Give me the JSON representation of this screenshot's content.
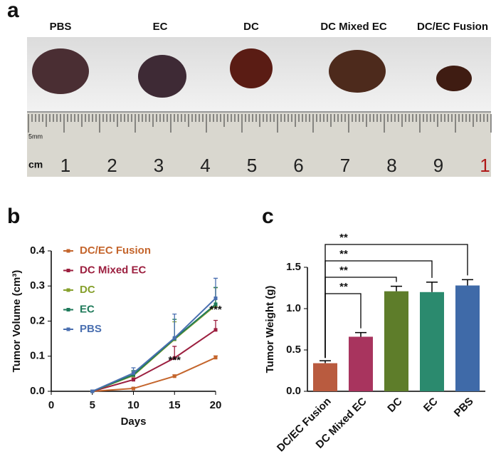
{
  "figure_a": {
    "panel_label": "a",
    "labels": [
      "PBS",
      "EC",
      "DC",
      "DC Mixed EC",
      "DC/EC Fusion"
    ],
    "ruler_unit": "cm",
    "ruler_scale": "5mm",
    "ruler_numbers": [
      "1",
      "2",
      "3",
      "4",
      "5",
      "6",
      "7",
      "8",
      "9",
      "1"
    ]
  },
  "chart_data": [
    {
      "type": "line",
      "panel_label": "b",
      "xlabel": "Days",
      "ylabel": "Tumor Volume (cm³)",
      "x": [
        5,
        10,
        15,
        20
      ],
      "xlim": [
        0,
        20
      ],
      "xticks": [
        0,
        5,
        10,
        15,
        20
      ],
      "ylim": [
        0,
        0.4
      ],
      "yticks": [
        {
          "value": 0,
          "label": "0.0"
        },
        0.1,
        0.2,
        0.3,
        0.4
      ],
      "series": [
        {
          "name": "DC/EC Fusion",
          "color": "#c4652c",
          "values": [
            0,
            0.008,
            0.043,
            0.096
          ],
          "errors": [
            0,
            0.003,
            0.004,
            0.005
          ]
        },
        {
          "name": "DC Mixed EC",
          "color": "#9c1f3f",
          "values": [
            0,
            0.033,
            0.095,
            0.175
          ],
          "errors": [
            0,
            0.005,
            0.033,
            0.027
          ]
        },
        {
          "name": "DC",
          "color": "#86a02c",
          "values": [
            0,
            0.045,
            0.148,
            0.245
          ],
          "errors": [
            0,
            0.01,
            0.05,
            0.05
          ]
        },
        {
          "name": "EC",
          "color": "#1f7a5a",
          "values": [
            0,
            0.047,
            0.15,
            0.248
          ],
          "errors": [
            0,
            0.012,
            0.055,
            0.048
          ]
        },
        {
          "name": "PBS",
          "color": "#4a6fb0",
          "values": [
            0,
            0.052,
            0.152,
            0.265
          ],
          "errors": [
            0,
            0.015,
            0.068,
            0.057
          ]
        }
      ],
      "annotations": [
        "***",
        "***"
      ]
    },
    {
      "type": "bar",
      "panel_label": "c",
      "ylabel": "Tumor Weight (g)",
      "categories": [
        "DC/EC Fusion",
        "DC Mixed EC",
        "DC",
        "EC",
        "PBS"
      ],
      "values": [
        0.34,
        0.66,
        1.21,
        1.2,
        1.28
      ],
      "errors": [
        0.03,
        0.05,
        0.06,
        0.12,
        0.07
      ],
      "colors": [
        "#b95b3f",
        "#a8345e",
        "#5e7d2a",
        "#2b8a6e",
        "#3f6aa8"
      ],
      "ylim": [
        0,
        1.5
      ],
      "yticks": [
        {
          "value": 0,
          "label": "0.0"
        },
        0.5,
        {
          "value": 1,
          "label": "1.0"
        },
        1.5
      ],
      "significance": [
        "**",
        "**",
        "**",
        "**"
      ]
    }
  ]
}
